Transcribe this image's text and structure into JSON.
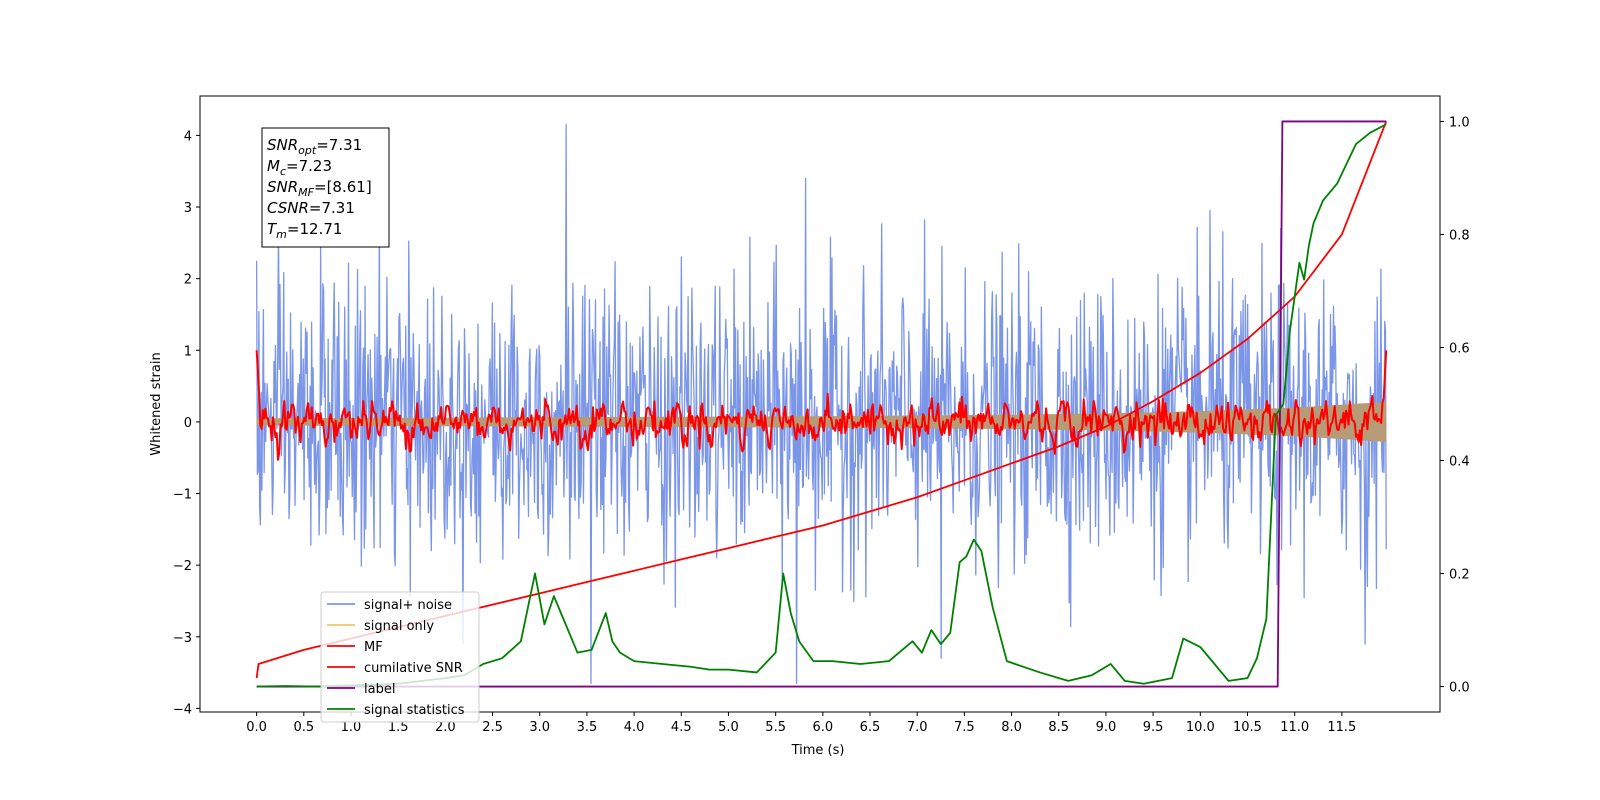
{
  "chart_data": {
    "type": "line",
    "title": "",
    "xlabel": "Time (s)",
    "ylabel": "Whitened strain",
    "ylabel_right": "",
    "xlim": [
      -0.6,
      12.54
    ],
    "ylim": [
      -4.05,
      4.55
    ],
    "ylim_right": [
      -0.045,
      1.045
    ],
    "x_ticks": [
      0.0,
      0.5,
      1.0,
      1.5,
      2.0,
      2.5,
      3.0,
      3.5,
      4.0,
      4.5,
      5.0,
      5.5,
      6.0,
      6.5,
      7.0,
      7.5,
      8.0,
      8.5,
      9.0,
      9.5,
      10.0,
      10.5,
      11.0,
      11.5
    ],
    "x_tick_labels": [
      "0.0",
      "0.5",
      "1.0",
      "1.5",
      "2.0",
      "2.5",
      "3.0",
      "3.5",
      "4.0",
      "4.5",
      "5.0",
      "5.5",
      "6.0",
      "6.5",
      "7.0",
      "7.5",
      "8.0",
      "8.5",
      "9.0",
      "9.5",
      "10.0",
      "10.5",
      "11.0",
      "11.5"
    ],
    "y_ticks": [
      -4,
      -3,
      -2,
      -1,
      0,
      1,
      2,
      3,
      4
    ],
    "y_tick_labels": [
      "−4",
      "−3",
      "−2",
      "−1",
      "0",
      "1",
      "2",
      "3",
      "4"
    ],
    "y_ticks_right": [
      0.0,
      0.2,
      0.4,
      0.6,
      0.8,
      1.0
    ],
    "y_tick_labels_right": [
      "0.0",
      "0.2",
      "0.4",
      "0.6",
      "0.8",
      "1.0"
    ],
    "grid": false,
    "legend_position": "lower-left",
    "annotation": {
      "lines": [
        {
          "base": "SNR",
          "sub": "opt",
          "rest": "=7.31"
        },
        {
          "base": "M",
          "sub": "c",
          "rest": "=7.23"
        },
        {
          "base": "SNR",
          "sub": "MF",
          "rest": "=[8.61]"
        },
        {
          "base": "CSNR",
          "sub": "",
          "rest": "=7.31"
        },
        {
          "base": "T",
          "sub": "m",
          "rest": "=12.71"
        }
      ]
    },
    "series": [
      {
        "name": "signal+ noise",
        "axis": "left",
        "color": "#7b96e8",
        "description_range": [
          -3.6,
          4.15
        ],
        "peaks": [
          [
            0.0,
            2.25
          ],
          [
            0.68,
            2.5
          ],
          [
            1.3,
            2.85
          ],
          [
            3.28,
            4.15
          ],
          [
            3.54,
            -3.65
          ],
          [
            5.72,
            -3.65
          ],
          [
            5.82,
            3.4
          ],
          [
            7.25,
            -3.3
          ],
          [
            10.1,
            2.95
          ],
          [
            10.85,
            2.7
          ],
          [
            11.75,
            -3.1
          ]
        ]
      },
      {
        "name": "signal only",
        "axis": "left",
        "color": "#f5c26b",
        "envelope": [
          [
            0.0,
            0.05
          ],
          [
            2.0,
            0.06
          ],
          [
            4.0,
            0.07
          ],
          [
            6.0,
            0.08
          ],
          [
            8.0,
            0.1
          ],
          [
            9.0,
            0.12
          ],
          [
            10.0,
            0.15
          ],
          [
            11.0,
            0.2
          ],
          [
            11.5,
            0.24
          ],
          [
            11.97,
            0.28
          ]
        ]
      },
      {
        "name": "MF",
        "axis": "left",
        "color": "#ff0000",
        "start_value": 1.0,
        "end_value": 1.0,
        "amplitude": 0.18
      },
      {
        "name": "cumilative SNR",
        "axis": "right",
        "color": "#ff0000",
        "x": [
          0.0,
          0.02,
          0.5,
          1.0,
          1.5,
          2.0,
          2.5,
          3.0,
          3.5,
          4.0,
          4.5,
          5.0,
          5.5,
          6.0,
          6.5,
          7.0,
          7.5,
          8.0,
          8.5,
          9.0,
          9.5,
          10.0,
          10.5,
          11.0,
          11.5,
          11.97
        ],
        "values": [
          0.015,
          0.04,
          0.065,
          0.085,
          0.105,
          0.125,
          0.145,
          0.165,
          0.185,
          0.205,
          0.225,
          0.245,
          0.265,
          0.285,
          0.31,
          0.335,
          0.365,
          0.395,
          0.425,
          0.46,
          0.505,
          0.555,
          0.615,
          0.69,
          0.8,
          1.0
        ]
      },
      {
        "name": "label",
        "axis": "right",
        "color": "#800080",
        "x": [
          0.0,
          10.82,
          10.87,
          11.97
        ],
        "values": [
          0.0,
          0.0,
          1.0,
          1.0
        ]
      },
      {
        "name": "signal statistics",
        "axis": "right",
        "color": "#008000",
        "x": [
          0.0,
          0.3,
          0.6,
          1.0,
          1.5,
          2.0,
          2.2,
          2.4,
          2.6,
          2.8,
          2.95,
          3.05,
          3.15,
          3.25,
          3.4,
          3.55,
          3.7,
          3.77,
          3.85,
          4.0,
          4.3,
          4.6,
          4.8,
          5.0,
          5.3,
          5.5,
          5.58,
          5.66,
          5.75,
          5.9,
          6.1,
          6.4,
          6.7,
          6.95,
          7.05,
          7.15,
          7.25,
          7.35,
          7.45,
          7.52,
          7.6,
          7.68,
          7.8,
          7.95,
          8.3,
          8.6,
          8.85,
          9.05,
          9.2,
          9.4,
          9.7,
          9.82,
          10.0,
          10.3,
          10.5,
          10.6,
          10.7,
          10.8,
          10.88,
          10.95,
          11.05,
          11.1,
          11.15,
          11.2,
          11.3,
          11.45,
          11.65,
          11.8,
          11.97
        ],
        "values": [
          0.0,
          0.001,
          0.0,
          0.002,
          0.005,
          0.015,
          0.02,
          0.04,
          0.05,
          0.08,
          0.2,
          0.11,
          0.16,
          0.12,
          0.06,
          0.065,
          0.13,
          0.08,
          0.06,
          0.045,
          0.04,
          0.035,
          0.03,
          0.03,
          0.025,
          0.06,
          0.2,
          0.13,
          0.08,
          0.045,
          0.045,
          0.04,
          0.045,
          0.08,
          0.06,
          0.1,
          0.075,
          0.095,
          0.22,
          0.23,
          0.26,
          0.24,
          0.14,
          0.045,
          0.025,
          0.01,
          0.02,
          0.04,
          0.01,
          0.005,
          0.015,
          0.085,
          0.07,
          0.01,
          0.015,
          0.05,
          0.12,
          0.48,
          0.5,
          0.63,
          0.75,
          0.72,
          0.78,
          0.82,
          0.86,
          0.89,
          0.96,
          0.98,
          0.995
        ]
      }
    ]
  }
}
